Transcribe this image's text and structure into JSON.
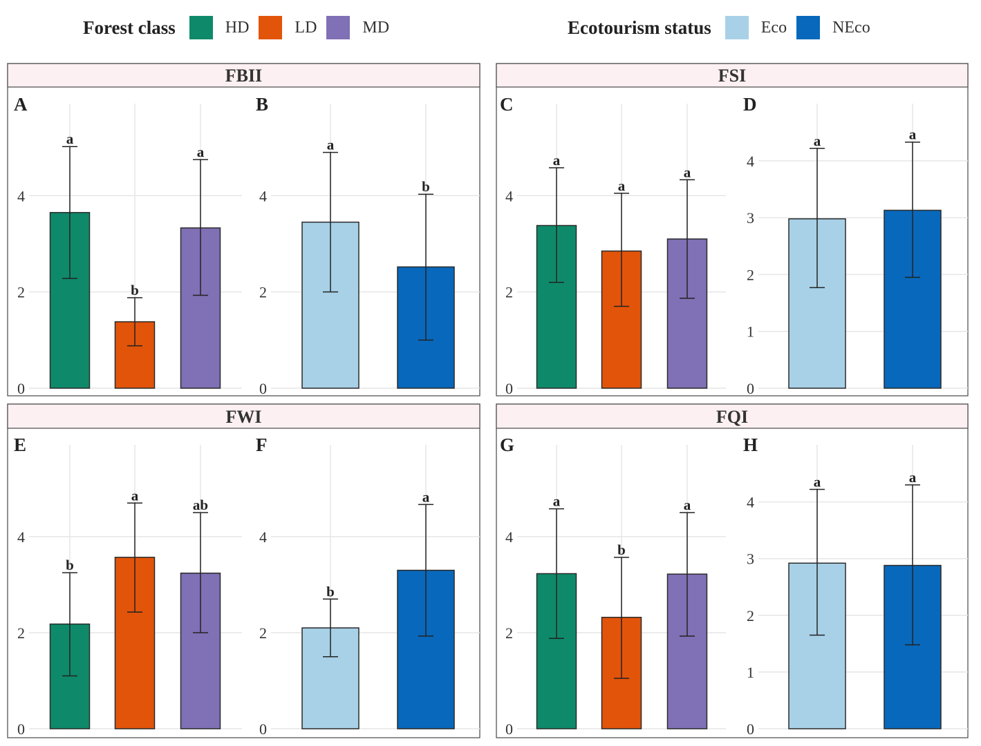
{
  "legends": [
    {
      "title": "Forest class",
      "items": [
        {
          "label": "HD",
          "color": "#0e8a6a"
        },
        {
          "label": "LD",
          "color": "#e2540a"
        },
        {
          "label": "MD",
          "color": "#8070b5"
        }
      ]
    },
    {
      "title": "Ecotourism status",
      "items": [
        {
          "label": "Eco",
          "color": "#a8d1e8"
        },
        {
          "label": "NEco",
          "color": "#0868bb"
        }
      ]
    }
  ],
  "chart_data": [
    {
      "type": "bar",
      "id": "A",
      "strip": "FBII",
      "group": "Forest class",
      "categories": [
        "HD",
        "LD",
        "MD"
      ],
      "values": [
        3.65,
        1.38,
        3.33
      ],
      "error": [
        [
          2.28,
          5.02
        ],
        [
          0.88,
          1.88
        ],
        [
          1.93,
          4.75
        ]
      ],
      "letters": [
        "a",
        "b",
        "a"
      ],
      "ylim": [
        0,
        6.2
      ],
      "yticks": [
        0,
        2,
        4
      ]
    },
    {
      "type": "bar",
      "id": "B",
      "strip": "FBII",
      "group": "Ecotourism status",
      "categories": [
        "Eco",
        "NEco"
      ],
      "values": [
        3.45,
        2.52
      ],
      "error": [
        [
          2.0,
          4.9
        ],
        [
          1.0,
          4.03
        ]
      ],
      "letters": [
        "a",
        "b"
      ],
      "ylim": [
        0,
        6.2
      ],
      "yticks": [
        0,
        2,
        4
      ]
    },
    {
      "type": "bar",
      "id": "C",
      "strip": "FSI",
      "group": "Forest class",
      "categories": [
        "HD",
        "LD",
        "MD"
      ],
      "values": [
        3.38,
        2.85,
        3.1
      ],
      "error": [
        [
          2.2,
          4.58
        ],
        [
          1.7,
          4.05
        ],
        [
          1.87,
          4.33
        ]
      ],
      "letters": [
        "a",
        "a",
        "a"
      ],
      "ylim": [
        0,
        6.2
      ],
      "yticks": [
        0,
        2,
        4
      ]
    },
    {
      "type": "bar",
      "id": "D",
      "strip": "FSI",
      "group": "Ecotourism status",
      "categories": [
        "Eco",
        "NEco"
      ],
      "values": [
        2.98,
        3.13
      ],
      "error": [
        [
          1.77,
          4.22
        ],
        [
          1.95,
          4.33
        ]
      ],
      "letters": [
        "a",
        "a"
      ],
      "ylim": [
        0,
        5.25
      ],
      "yticks": [
        0,
        1,
        2,
        3,
        4
      ]
    },
    {
      "type": "bar",
      "id": "E",
      "strip": "FWI",
      "group": "Forest class",
      "categories": [
        "HD",
        "LD",
        "MD"
      ],
      "values": [
        2.18,
        3.57,
        3.24
      ],
      "error": [
        [
          1.1,
          3.25
        ],
        [
          2.43,
          4.7
        ],
        [
          2.0,
          4.5
        ]
      ],
      "letters": [
        "b",
        "a",
        "ab"
      ],
      "ylim": [
        0,
        6.2
      ],
      "yticks": [
        0,
        2,
        4
      ]
    },
    {
      "type": "bar",
      "id": "F",
      "strip": "FWI",
      "group": "Ecotourism status",
      "categories": [
        "Eco",
        "NEco"
      ],
      "values": [
        2.1,
        3.3
      ],
      "error": [
        [
          1.5,
          2.7
        ],
        [
          1.93,
          4.67
        ]
      ],
      "letters": [
        "b",
        "a"
      ],
      "ylim": [
        0,
        6.2
      ],
      "yticks": [
        0,
        2,
        4
      ]
    },
    {
      "type": "bar",
      "id": "G",
      "strip": "FQI",
      "group": "Forest class",
      "categories": [
        "HD",
        "LD",
        "MD"
      ],
      "values": [
        3.23,
        2.32,
        3.22
      ],
      "error": [
        [
          1.88,
          4.58
        ],
        [
          1.05,
          3.57
        ],
        [
          1.93,
          4.5
        ]
      ],
      "letters": [
        "a",
        "b",
        "a"
      ],
      "ylim": [
        0,
        6.2
      ],
      "yticks": [
        0,
        2,
        4
      ]
    },
    {
      "type": "bar",
      "id": "H",
      "strip": "FQI",
      "group": "Ecotourism status",
      "categories": [
        "Eco",
        "NEco"
      ],
      "values": [
        2.92,
        2.88
      ],
      "error": [
        [
          1.65,
          4.22
        ],
        [
          1.48,
          4.3
        ]
      ],
      "letters": [
        "a",
        "a"
      ],
      "ylim": [
        0,
        5.25
      ],
      "yticks": [
        0,
        1,
        2,
        3,
        4
      ]
    }
  ]
}
